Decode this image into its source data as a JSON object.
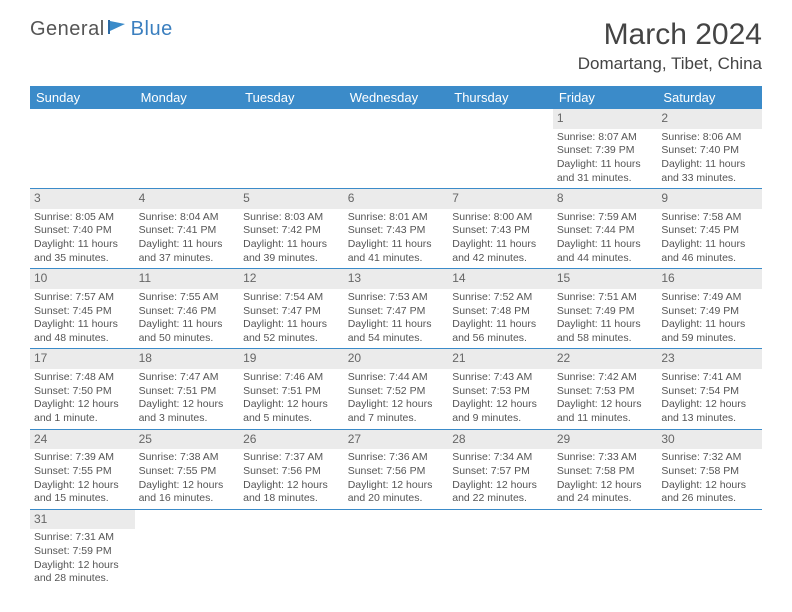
{
  "logo": {
    "text1": "General",
    "text2": "Blue"
  },
  "title": "March 2024",
  "location": "Domartang, Tibet, China",
  "header_bg": "#3b8bc9",
  "daynum_bg": "#ebebeb",
  "weekdays": [
    "Sunday",
    "Monday",
    "Tuesday",
    "Wednesday",
    "Thursday",
    "Friday",
    "Saturday"
  ],
  "weeks": [
    [
      null,
      null,
      null,
      null,
      null,
      {
        "n": "1",
        "sunrise": "8:07 AM",
        "sunset": "7:39 PM",
        "daylight": "11 hours and 31 minutes."
      },
      {
        "n": "2",
        "sunrise": "8:06 AM",
        "sunset": "7:40 PM",
        "daylight": "11 hours and 33 minutes."
      }
    ],
    [
      {
        "n": "3",
        "sunrise": "8:05 AM",
        "sunset": "7:40 PM",
        "daylight": "11 hours and 35 minutes."
      },
      {
        "n": "4",
        "sunrise": "8:04 AM",
        "sunset": "7:41 PM",
        "daylight": "11 hours and 37 minutes."
      },
      {
        "n": "5",
        "sunrise": "8:03 AM",
        "sunset": "7:42 PM",
        "daylight": "11 hours and 39 minutes."
      },
      {
        "n": "6",
        "sunrise": "8:01 AM",
        "sunset": "7:43 PM",
        "daylight": "11 hours and 41 minutes."
      },
      {
        "n": "7",
        "sunrise": "8:00 AM",
        "sunset": "7:43 PM",
        "daylight": "11 hours and 42 minutes."
      },
      {
        "n": "8",
        "sunrise": "7:59 AM",
        "sunset": "7:44 PM",
        "daylight": "11 hours and 44 minutes."
      },
      {
        "n": "9",
        "sunrise": "7:58 AM",
        "sunset": "7:45 PM",
        "daylight": "11 hours and 46 minutes."
      }
    ],
    [
      {
        "n": "10",
        "sunrise": "7:57 AM",
        "sunset": "7:45 PM",
        "daylight": "11 hours and 48 minutes."
      },
      {
        "n": "11",
        "sunrise": "7:55 AM",
        "sunset": "7:46 PM",
        "daylight": "11 hours and 50 minutes."
      },
      {
        "n": "12",
        "sunrise": "7:54 AM",
        "sunset": "7:47 PM",
        "daylight": "11 hours and 52 minutes."
      },
      {
        "n": "13",
        "sunrise": "7:53 AM",
        "sunset": "7:47 PM",
        "daylight": "11 hours and 54 minutes."
      },
      {
        "n": "14",
        "sunrise": "7:52 AM",
        "sunset": "7:48 PM",
        "daylight": "11 hours and 56 minutes."
      },
      {
        "n": "15",
        "sunrise": "7:51 AM",
        "sunset": "7:49 PM",
        "daylight": "11 hours and 58 minutes."
      },
      {
        "n": "16",
        "sunrise": "7:49 AM",
        "sunset": "7:49 PM",
        "daylight": "11 hours and 59 minutes."
      }
    ],
    [
      {
        "n": "17",
        "sunrise": "7:48 AM",
        "sunset": "7:50 PM",
        "daylight": "12 hours and 1 minute."
      },
      {
        "n": "18",
        "sunrise": "7:47 AM",
        "sunset": "7:51 PM",
        "daylight": "12 hours and 3 minutes."
      },
      {
        "n": "19",
        "sunrise": "7:46 AM",
        "sunset": "7:51 PM",
        "daylight": "12 hours and 5 minutes."
      },
      {
        "n": "20",
        "sunrise": "7:44 AM",
        "sunset": "7:52 PM",
        "daylight": "12 hours and 7 minutes."
      },
      {
        "n": "21",
        "sunrise": "7:43 AM",
        "sunset": "7:53 PM",
        "daylight": "12 hours and 9 minutes."
      },
      {
        "n": "22",
        "sunrise": "7:42 AM",
        "sunset": "7:53 PM",
        "daylight": "12 hours and 11 minutes."
      },
      {
        "n": "23",
        "sunrise": "7:41 AM",
        "sunset": "7:54 PM",
        "daylight": "12 hours and 13 minutes."
      }
    ],
    [
      {
        "n": "24",
        "sunrise": "7:39 AM",
        "sunset": "7:55 PM",
        "daylight": "12 hours and 15 minutes."
      },
      {
        "n": "25",
        "sunrise": "7:38 AM",
        "sunset": "7:55 PM",
        "daylight": "12 hours and 16 minutes."
      },
      {
        "n": "26",
        "sunrise": "7:37 AM",
        "sunset": "7:56 PM",
        "daylight": "12 hours and 18 minutes."
      },
      {
        "n": "27",
        "sunrise": "7:36 AM",
        "sunset": "7:56 PM",
        "daylight": "12 hours and 20 minutes."
      },
      {
        "n": "28",
        "sunrise": "7:34 AM",
        "sunset": "7:57 PM",
        "daylight": "12 hours and 22 minutes."
      },
      {
        "n": "29",
        "sunrise": "7:33 AM",
        "sunset": "7:58 PM",
        "daylight": "12 hours and 24 minutes."
      },
      {
        "n": "30",
        "sunrise": "7:32 AM",
        "sunset": "7:58 PM",
        "daylight": "12 hours and 26 minutes."
      }
    ],
    [
      {
        "n": "31",
        "sunrise": "7:31 AM",
        "sunset": "7:59 PM",
        "daylight": "12 hours and 28 minutes."
      },
      null,
      null,
      null,
      null,
      null,
      null
    ]
  ],
  "labels": {
    "sunrise": "Sunrise: ",
    "sunset": "Sunset: ",
    "daylight": "Daylight: "
  }
}
